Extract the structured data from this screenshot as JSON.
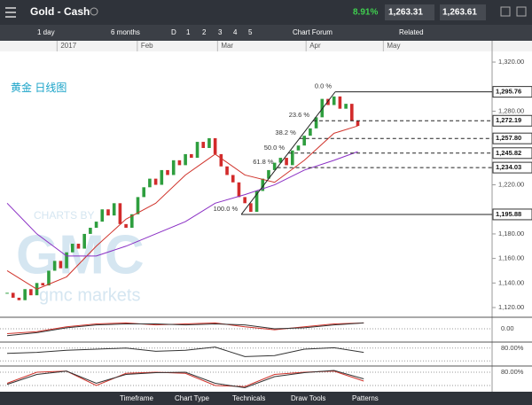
{
  "header": {
    "title": "Gold - Cash",
    "change": "8.91%",
    "sell": "1,263.31",
    "buy": "1,263.61"
  },
  "toolbar": {
    "interval": "1 day",
    "range": "6 months",
    "periods": [
      "D",
      "1",
      "2",
      "3",
      "4",
      "5"
    ],
    "forum": "Chart Forum",
    "related": "Related"
  },
  "chart_data": {
    "type": "candlestick",
    "title": "黄金 日线图",
    "watermark": [
      "CHARTS BY",
      "GMC",
      "gmc markets"
    ],
    "xlim": [
      -1.2,
      81.6
    ],
    "ylim": [
      1112.8,
      1328.7
    ],
    "x_labels": [
      {
        "value": 8.4,
        "label": "2017"
      },
      {
        "value": 21.9,
        "label": "Feb"
      },
      {
        "value": 35.4,
        "label": "Mar"
      },
      {
        "value": 50.3,
        "label": "Apr"
      },
      {
        "value": 63.3,
        "label": "May"
      }
    ],
    "yticks": [
      {
        "value": 1320,
        "label": "1,320.00"
      },
      {
        "value": 1280,
        "label": "1,280.00"
      },
      {
        "value": 1220,
        "label": "1,220.00"
      },
      {
        "value": 1180,
        "label": "1,180.00"
      },
      {
        "value": 1160,
        "label": "1,160.00"
      },
      {
        "value": 1140,
        "label": "1,140.00"
      },
      {
        "value": 1120,
        "label": "1,120.00"
      }
    ],
    "closes": [
      1132,
      1128,
      1126,
      1135,
      1130,
      1140,
      1138,
      1150,
      1158,
      1152,
      1165,
      1172,
      1168,
      1180,
      1185,
      1190,
      1200,
      1195,
      1205,
      1188,
      1185,
      1196,
      1210,
      1218,
      1225,
      1220,
      1232,
      1228,
      1240,
      1236,
      1245,
      1242,
      1255,
      1250,
      1258,
      1245,
      1235,
      1228,
      1222,
      1210,
      1205,
      1198,
      1215,
      1225,
      1232,
      1238,
      1242,
      1236,
      1248,
      1252,
      1260,
      1266,
      1275,
      1290,
      1285,
      1292,
      1282,
      1286,
      1272,
      1268
    ],
    "up_color": "#2e9e3e",
    "down_color": "#d22b2b",
    "series": [
      {
        "color": "#d0342c",
        "x": [
          0,
          5,
          10,
          15,
          20,
          25,
          30,
          35,
          40,
          45,
          50,
          55,
          59
        ],
        "values": [
          1150,
          1135,
          1145,
          1170,
          1192,
          1205,
          1228,
          1245,
          1228,
          1222,
          1240,
          1262,
          1268
        ]
      },
      {
        "color": "#8a2fc4",
        "x": [
          0,
          5,
          10,
          15,
          20,
          25,
          30,
          35,
          40,
          45,
          50,
          55,
          59
        ],
        "values": [
          1205,
          1180,
          1162,
          1162,
          1170,
          1180,
          1190,
          1205,
          1212,
          1220,
          1232,
          1240,
          1247
        ]
      }
    ],
    "fib": {
      "anchor_x": [
        39.4,
        55.2
      ],
      "levels": [
        {
          "pct": "0.0 %",
          "value": 1295.76,
          "label": "1,295.76"
        },
        {
          "pct": "23.6 %",
          "value": 1272.19,
          "label": "1,272.19"
        },
        {
          "pct": "38.2 %",
          "value": 1257.8,
          "label": "1,257.80"
        },
        {
          "pct": "50.0 %",
          "value": 1245.82,
          "label": "1,245.82"
        },
        {
          "pct": "61.8 %",
          "value": 1234.03,
          "label": "1,234.03"
        },
        {
          "pct": "100.0 %",
          "value": 1195.88,
          "label": "1,195.88"
        }
      ]
    },
    "panes": [
      {
        "ylim": [
          -10,
          10
        ],
        "ticks": [
          {
            "value": 0,
            "label": "0.00"
          }
        ],
        "levels": [],
        "x": [
          0,
          5,
          10,
          15,
          20,
          25,
          30,
          35,
          40,
          45,
          50,
          55,
          60
        ],
        "series": [
          {
            "color": "#d0342c",
            "values": [
              -5,
              -3,
              2,
              5,
              6,
              4,
              5,
              6,
              2,
              -1,
              2,
              5,
              6
            ]
          },
          {
            "color": "#333333",
            "values": [
              -7,
              -4,
              1,
              4,
              5,
              5,
              4,
              5,
              4,
              0,
              1,
              4,
              6
            ]
          }
        ]
      },
      {
        "ylim": [
          0,
          100
        ],
        "ticks": [
          {
            "value": 80,
            "label": "80.00%"
          }
        ],
        "levels": [
          20
        ],
        "x": [
          0,
          5,
          10,
          15,
          20,
          25,
          30,
          35,
          40,
          45,
          50,
          55,
          60
        ],
        "series": [
          {
            "color": "#333333",
            "values": [
              55,
              60,
              70,
              75,
              80,
              65,
              70,
              85,
              40,
              45,
              75,
              82,
              60
            ]
          }
        ]
      },
      {
        "ylim": [
          0,
          100
        ],
        "ticks": [
          {
            "value": 80,
            "label": "80.00%"
          }
        ],
        "levels": [
          20
        ],
        "x": [
          0,
          5,
          10,
          15,
          20,
          25,
          30,
          35,
          40,
          45,
          50,
          55,
          60
        ],
        "series": [
          {
            "color": "#d0342c",
            "values": [
              30,
              80,
              85,
              20,
              75,
              80,
              75,
              20,
              15,
              70,
              80,
              85,
              40
            ]
          },
          {
            "color": "#333333",
            "values": [
              25,
              70,
              85,
              30,
              70,
              78,
              80,
              30,
              10,
              60,
              78,
              88,
              50
            ]
          }
        ]
      }
    ]
  },
  "footer": {
    "tabs": [
      "Timeframe",
      "Chart Type",
      "Technicals",
      "Draw Tools",
      "Patterns"
    ]
  }
}
